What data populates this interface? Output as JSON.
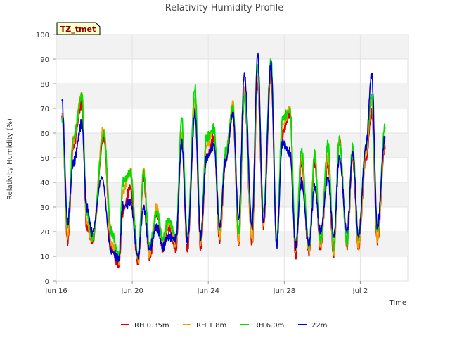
{
  "chart_data": {
    "type": "line",
    "title": "Relativity Humidity Profile",
    "xlabel": "Time",
    "ylabel": "Relativity Humidity (%)",
    "site_label": "TZ_tmet",
    "ylim": [
      0,
      100
    ],
    "yticks": [
      0,
      10,
      20,
      30,
      40,
      50,
      60,
      70,
      80,
      90,
      100
    ],
    "xlim_days": [
      0,
      18.5
    ],
    "xticks": [
      {
        "day": 0,
        "label": "Jun 16"
      },
      {
        "day": 4,
        "label": "Jun 20"
      },
      {
        "day": 8,
        "label": "Jun 24"
      },
      {
        "day": 12,
        "label": "Jun 28"
      },
      {
        "day": 16,
        "label": "Jul 2"
      }
    ],
    "legend_position": "bottom-center",
    "grid": true,
    "series": [
      {
        "name": "RH 0.35m",
        "color": "#dd0000",
        "x": [
          0.3,
          0.6,
          0.9,
          1.35,
          1.6,
          1.9,
          2.5,
          2.9,
          3.3,
          3.5,
          3.9,
          4.3,
          4.6,
          4.9,
          5.3,
          5.6,
          5.9,
          6.3,
          6.6,
          6.9,
          7.3,
          7.6,
          7.9,
          8.3,
          8.6,
          8.9,
          9.3,
          9.6,
          9.9,
          10.3,
          10.6,
          10.9,
          11.3,
          11.6,
          11.9,
          12.3,
          12.6,
          12.9,
          13.3,
          13.6,
          13.9,
          14.3,
          14.6,
          14.9,
          15.3,
          15.6,
          15.9,
          16.3,
          16.6,
          16.9,
          17.3
        ],
        "y": [
          67,
          16,
          55,
          72,
          22,
          16,
          58,
          13,
          6,
          28,
          38,
          7,
          42,
          9,
          28,
          13,
          22,
          13,
          58,
          13,
          70,
          13,
          50,
          58,
          16,
          48,
          68,
          15,
          75,
          15,
          80,
          22,
          84,
          15,
          60,
          68,
          10,
          48,
          11,
          48,
          13,
          48,
          10,
          58,
          14,
          50,
          13,
          50,
          68,
          16,
          55
        ]
      },
      {
        "name": "RH 1.8m",
        "color": "#f0a000",
        "x": [
          0.3,
          0.6,
          0.9,
          1.35,
          1.6,
          1.9,
          2.5,
          2.9,
          3.3,
          3.5,
          3.9,
          4.3,
          4.6,
          4.9,
          5.3,
          5.6,
          5.9,
          6.3,
          6.6,
          6.9,
          7.3,
          7.6,
          7.9,
          8.3,
          8.6,
          8.9,
          9.3,
          9.6,
          9.9,
          10.3,
          10.6,
          10.9,
          11.3,
          11.6,
          11.9,
          12.3,
          12.6,
          12.9,
          13.3,
          13.6,
          13.9,
          14.3,
          14.6,
          14.9,
          15.3,
          15.6,
          15.9,
          16.3,
          16.6,
          16.9,
          17.3
        ],
        "y": [
          68,
          18,
          57,
          76,
          24,
          17,
          62,
          15,
          8,
          36,
          45,
          9,
          45,
          11,
          30,
          15,
          24,
          15,
          60,
          15,
          74,
          15,
          55,
          61,
          18,
          50,
          72,
          16,
          78,
          17,
          83,
          24,
          86,
          16,
          63,
          70,
          12,
          50,
          12,
          52,
          14,
          51,
          12,
          57,
          15,
          52,
          14,
          52,
          73,
          17,
          57
        ]
      },
      {
        "name": "RH 6.0m",
        "color": "#00dd00",
        "x": [
          0.3,
          0.6,
          0.9,
          1.35,
          1.6,
          1.9,
          2.5,
          2.9,
          3.3,
          3.5,
          3.9,
          4.3,
          4.6,
          4.9,
          5.3,
          5.6,
          5.9,
          6.3,
          6.6,
          6.9,
          7.3,
          7.6,
          7.9,
          8.3,
          8.6,
          8.9,
          9.3,
          9.6,
          9.9,
          10.3,
          10.6,
          10.9,
          11.3,
          11.6,
          11.9,
          12.3,
          12.6,
          12.9,
          13.3,
          13.6,
          13.9,
          14.3,
          14.6,
          14.9,
          15.3,
          15.6,
          15.9,
          16.3,
          16.6,
          16.9,
          17.3
        ],
        "y": [
          66,
          22,
          58,
          75,
          28,
          17,
          60,
          20,
          10,
          40,
          44,
          10,
          44,
          14,
          28,
          17,
          25,
          18,
          66,
          18,
          78,
          18,
          58,
          62,
          22,
          52,
          70,
          20,
          75,
          22,
          87,
          28,
          90,
          17,
          66,
          69,
          14,
          53,
          14,
          51,
          16,
          56,
          14,
          57,
          15,
          55,
          18,
          55,
          75,
          20,
          63
        ]
      },
      {
        "name": "22m",
        "color": "#0000cc",
        "x": [
          0.3,
          0.6,
          0.9,
          1.35,
          1.6,
          1.9,
          2.4,
          2.9,
          3.3,
          3.5,
          3.9,
          4.3,
          4.6,
          4.9,
          5.3,
          5.6,
          5.9,
          6.3,
          6.6,
          6.9,
          7.3,
          7.6,
          7.9,
          8.3,
          8.6,
          8.9,
          9.3,
          9.6,
          9.9,
          10.3,
          10.6,
          10.9,
          11.3,
          11.6,
          11.9,
          12.3,
          12.6,
          12.9,
          13.3,
          13.6,
          13.9,
          14.3,
          14.6,
          14.9,
          15.3,
          15.6,
          15.9,
          16.3,
          16.6,
          16.9,
          17.3
        ],
        "y": [
          73,
          24,
          48,
          64,
          30,
          20,
          42,
          12,
          9,
          30,
          32,
          10,
          30,
          13,
          22,
          14,
          18,
          17,
          56,
          16,
          68,
          18,
          50,
          55,
          22,
          48,
          68,
          25,
          84,
          22,
          92,
          24,
          88,
          15,
          56,
          52,
          14,
          40,
          15,
          38,
          20,
          42,
          18,
          50,
          20,
          52,
          18,
          55,
          84,
          22,
          58
        ]
      }
    ]
  }
}
